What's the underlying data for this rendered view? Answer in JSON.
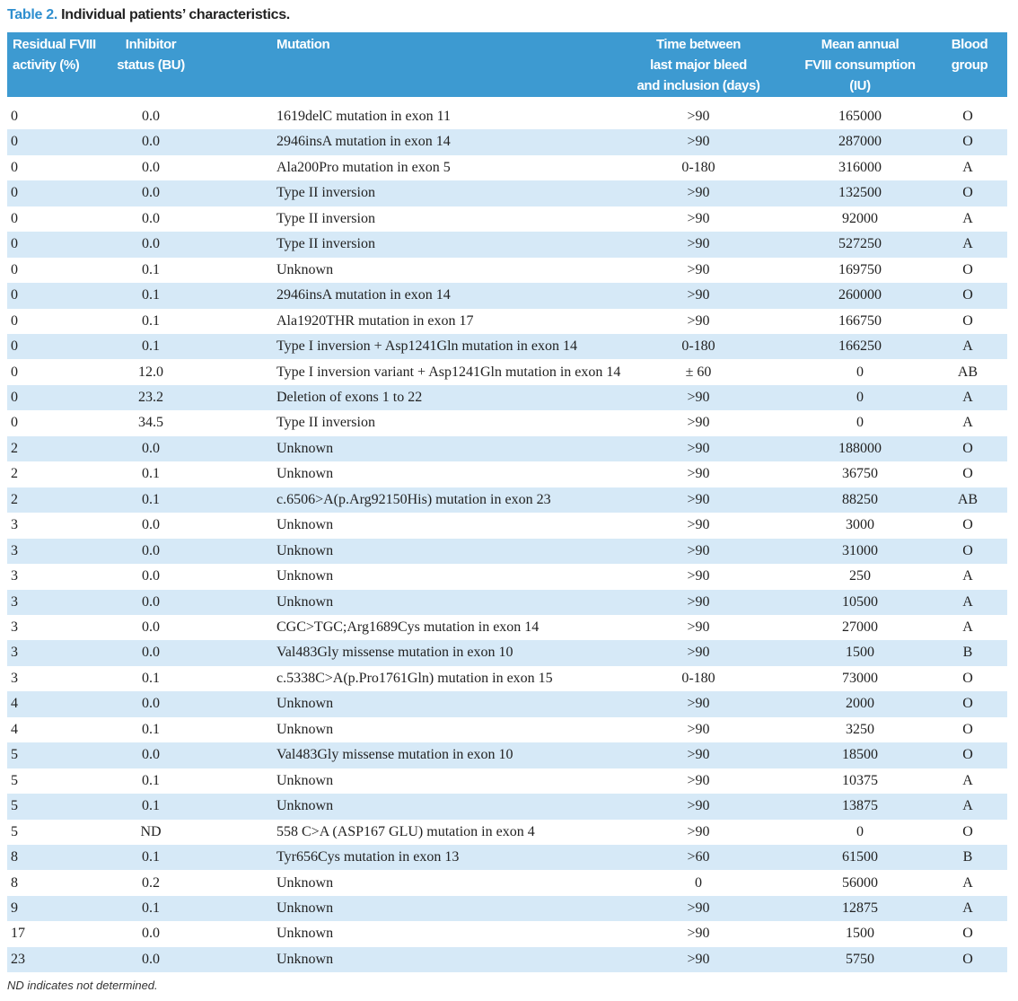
{
  "caption": {
    "label": "Table 2.",
    "title": "Individual patients’ characteristics."
  },
  "table": {
    "headers": [
      "Residual FVIII\nactivity (%)",
      "Inhibitor\nstatus (BU)",
      "Mutation",
      "Time between\nlast major bleed\nand inclusion (days)",
      "Mean annual\nFVIII consumption\n(IU)",
      "Blood\ngroup"
    ],
    "rows": [
      [
        "0",
        "0.0",
        "1619delC mutation in exon 11",
        ">90",
        "165000",
        "O"
      ],
      [
        "0",
        "0.0",
        "2946insA mutation in exon 14",
        ">90",
        "287000",
        "O"
      ],
      [
        "0",
        "0.0",
        "Ala200Pro mutation in exon 5",
        "0-180",
        "316000",
        "A"
      ],
      [
        "0",
        "0.0",
        "Type II inversion",
        ">90",
        "132500",
        "O"
      ],
      [
        "0",
        "0.0",
        "Type II inversion",
        ">90",
        "92000",
        "A"
      ],
      [
        "0",
        "0.0",
        "Type II inversion",
        ">90",
        "527250",
        "A"
      ],
      [
        "0",
        "0.1",
        "Unknown",
        ">90",
        "169750",
        "O"
      ],
      [
        "0",
        "0.1",
        "2946insA mutation in exon 14",
        ">90",
        "260000",
        "O"
      ],
      [
        "0",
        "0.1",
        "Ala1920THR mutation in exon 17",
        ">90",
        "166750",
        "O"
      ],
      [
        "0",
        "0.1",
        "Type I inversion + Asp1241Gln mutation in exon 14",
        "0-180",
        "166250",
        "A"
      ],
      [
        "0",
        "12.0",
        "Type I inversion variant + Asp1241Gln mutation in exon 14",
        "± 60",
        "0",
        "AB"
      ],
      [
        "0",
        "23.2",
        "Deletion of exons 1 to 22",
        ">90",
        "0",
        "A"
      ],
      [
        "0",
        "34.5",
        "Type II inversion",
        ">90",
        "0",
        "A"
      ],
      [
        "2",
        "0.0",
        "Unknown",
        ">90",
        "188000",
        "O"
      ],
      [
        "2",
        "0.1",
        "Unknown",
        ">90",
        "36750",
        "O"
      ],
      [
        "2",
        "0.1",
        "c.6506>A(p.Arg92150His) mutation in exon 23",
        ">90",
        "88250",
        "AB"
      ],
      [
        "3",
        "0.0",
        "Unknown",
        ">90",
        "3000",
        "O"
      ],
      [
        "3",
        "0.0",
        "Unknown",
        ">90",
        "31000",
        "O"
      ],
      [
        "3",
        "0.0",
        "Unknown",
        ">90",
        "250",
        "A"
      ],
      [
        "3",
        "0.0",
        "Unknown",
        ">90",
        "10500",
        "A"
      ],
      [
        "3",
        "0.0",
        "CGC>TGC;Arg1689Cys mutation in exon 14",
        ">90",
        "27000",
        "A"
      ],
      [
        "3",
        "0.0",
        "Val483Gly missense mutation in exon 10",
        ">90",
        "1500",
        "B"
      ],
      [
        "3",
        "0.1",
        "c.5338C>A(p.Pro1761Gln) mutation in exon 15",
        "0-180",
        "73000",
        "O"
      ],
      [
        "4",
        "0.0",
        "Unknown",
        ">90",
        "2000",
        "O"
      ],
      [
        "4",
        "0.1",
        "Unknown",
        ">90",
        "3250",
        "O"
      ],
      [
        "5",
        "0.0",
        "Val483Gly missense mutation in exon 10",
        ">90",
        "18500",
        "O"
      ],
      [
        "5",
        "0.1",
        "Unknown",
        ">90",
        "10375",
        "A"
      ],
      [
        "5",
        "0.1",
        "Unknown",
        ">90",
        "13875",
        "A"
      ],
      [
        "5",
        "ND",
        "558 C>A (ASP167 GLU) mutation in exon 4",
        ">90",
        "0",
        "O"
      ],
      [
        "8",
        "0.1",
        "Tyr656Cys mutation in exon 13",
        ">60",
        "61500",
        "B"
      ],
      [
        "8",
        "0.2",
        "Unknown",
        "0",
        "56000",
        "A"
      ],
      [
        "9",
        "0.1",
        "Unknown",
        ">90",
        "12875",
        "A"
      ],
      [
        "17",
        "0.0",
        "Unknown",
        ">90",
        "1500",
        "O"
      ],
      [
        "23",
        "0.0",
        "Unknown",
        ">90",
        "5750",
        "O"
      ]
    ]
  },
  "footnote": "ND indicates not determined."
}
